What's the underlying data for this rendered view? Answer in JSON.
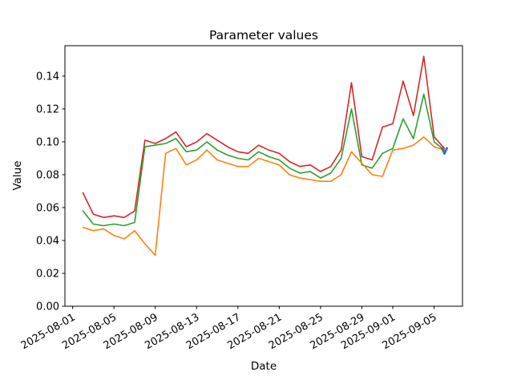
{
  "chart_data": {
    "type": "line",
    "title": "Parameter values",
    "xlabel": "Date",
    "ylabel": "Value",
    "grid": false,
    "legend": "none",
    "ylim": [
      0,
      0.1585
    ],
    "xlim_days_from_2025-08-01": [
      -0.75,
      37.75
    ],
    "yticks": [
      "0.00",
      "0.02",
      "0.04",
      "0.06",
      "0.08",
      "0.10",
      "0.12",
      "0.14"
    ],
    "xticks": [
      "2025-08-01",
      "2025-08-05",
      "2025-08-09",
      "2025-08-13",
      "2025-08-17",
      "2025-08-21",
      "2025-08-25",
      "2025-08-29",
      "2025-09-01",
      "2025-09-05"
    ],
    "x": [
      "2025-08-02",
      "2025-08-03",
      "2025-08-04",
      "2025-08-05",
      "2025-08-06",
      "2025-08-07",
      "2025-08-08",
      "2025-08-09",
      "2025-08-10",
      "2025-08-11",
      "2025-08-12",
      "2025-08-13",
      "2025-08-14",
      "2025-08-15",
      "2025-08-16",
      "2025-08-17",
      "2025-08-18",
      "2025-08-19",
      "2025-08-20",
      "2025-08-21",
      "2025-08-22",
      "2025-08-23",
      "2025-08-24",
      "2025-08-25",
      "2025-08-26",
      "2025-08-27",
      "2025-08-28",
      "2025-08-29",
      "2025-08-30",
      "2025-08-31",
      "2025-09-01",
      "2025-09-02",
      "2025-09-03",
      "2025-09-04",
      "2025-09-05",
      "2025-09-06"
    ],
    "series": [
      {
        "name": "red",
        "color": "#d62728",
        "values": [
          0.069,
          0.056,
          0.054,
          0.055,
          0.054,
          0.058,
          0.101,
          0.099,
          0.102,
          0.106,
          0.097,
          0.1,
          0.105,
          0.101,
          0.097,
          0.094,
          0.093,
          0.098,
          0.095,
          0.093,
          0.088,
          0.085,
          0.086,
          0.082,
          0.085,
          0.095,
          0.136,
          0.091,
          0.089,
          0.109,
          0.111,
          0.137,
          0.116,
          0.152,
          0.103,
          0.096
        ]
      },
      {
        "name": "green",
        "color": "#2ca02c",
        "values": [
          0.058,
          0.05,
          0.049,
          0.05,
          0.049,
          0.051,
          0.097,
          0.098,
          0.099,
          0.102,
          0.094,
          0.095,
          0.1,
          0.095,
          0.092,
          0.09,
          0.089,
          0.094,
          0.091,
          0.089,
          0.084,
          0.081,
          0.082,
          0.078,
          0.081,
          0.09,
          0.12,
          0.086,
          0.084,
          0.093,
          0.096,
          0.114,
          0.102,
          0.129,
          0.1,
          0.095
        ]
      },
      {
        "name": "orange",
        "color": "#ff7f0e",
        "values": [
          0.048,
          0.046,
          0.047,
          0.043,
          0.041,
          0.046,
          0.038,
          0.031,
          0.093,
          0.096,
          0.086,
          0.089,
          0.095,
          0.089,
          0.087,
          0.085,
          0.085,
          0.09,
          0.088,
          0.086,
          0.08,
          0.078,
          0.077,
          0.076,
          0.076,
          0.08,
          0.094,
          0.087,
          0.08,
          0.079,
          0.095,
          0.096,
          0.098,
          0.103,
          0.097,
          0.095
        ]
      }
    ],
    "end_marker": {
      "shape": "caret-down",
      "color": "#1f77b4",
      "x": "2025-09-06",
      "y": 0.094
    }
  }
}
